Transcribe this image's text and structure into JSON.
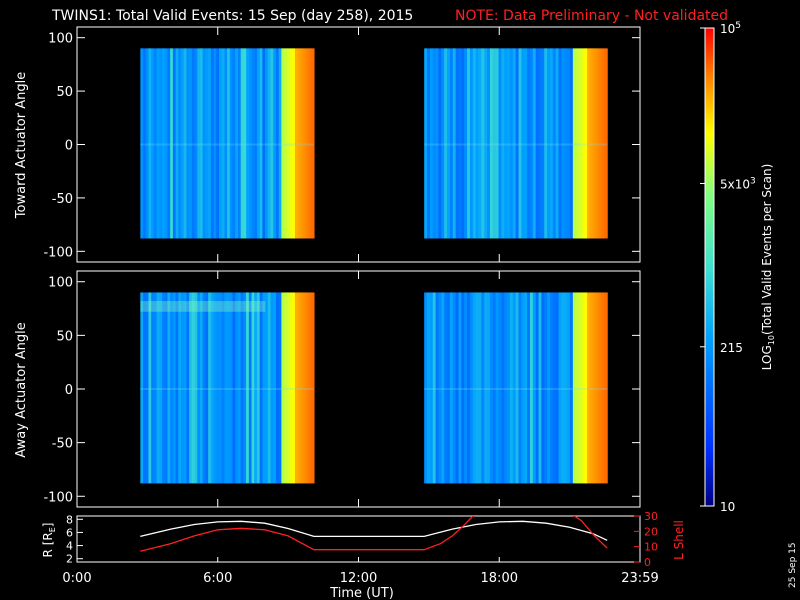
{
  "header": {
    "title": "TWINS1: Total Valid Events: 15 Sep (day 258), 2015",
    "note": "NOTE: Data Preliminary - Not validated"
  },
  "stamp": "25 Sep 15",
  "chart_data": [
    {
      "type": "heatmap",
      "panel": "toward",
      "ylabel": "Toward Actuator Angle",
      "ylim": [
        -110,
        110
      ],
      "yticks": [
        "100",
        "50",
        "0",
        "-50",
        "-100"
      ],
      "yticks_values": [
        100,
        50,
        0,
        -50,
        -100
      ],
      "xlim_hours": [
        0,
        24
      ],
      "segments": [
        {
          "start_h": 2.7,
          "end_h": 10.1,
          "angle_range": [
            -88,
            90
          ]
        },
        {
          "start_h": 14.8,
          "end_h": 22.6,
          "angle_range": [
            -88,
            90
          ]
        }
      ]
    },
    {
      "type": "heatmap",
      "panel": "away",
      "ylabel": "Away Actuator Angle",
      "ylim": [
        -110,
        110
      ],
      "yticks": [
        "100",
        "50",
        "0",
        "-50",
        "-100"
      ],
      "yticks_values": [
        100,
        50,
        0,
        -50,
        -100
      ],
      "xlim_hours": [
        0,
        24
      ],
      "segments": [
        {
          "start_h": 2.7,
          "end_h": 10.1,
          "angle_range": [
            -88,
            90
          ]
        },
        {
          "start_h": 14.8,
          "end_h": 22.6,
          "angle_range": [
            -88,
            90
          ]
        }
      ]
    },
    {
      "type": "line",
      "panel": "orbit",
      "ylabel_left": "R [RE]",
      "ylabel_left_sub": "E",
      "ylabel_right": "L Shell",
      "ylim_left": [
        1.5,
        8.5
      ],
      "ylim_right": [
        0,
        30
      ],
      "yticks_left": [
        "8",
        "6",
        "4",
        "2"
      ],
      "yticks_left_values": [
        8,
        6,
        4,
        2
      ],
      "yticks_right": [
        "30",
        "20",
        "10",
        "0"
      ],
      "yticks_right_values": [
        30,
        20,
        10,
        0
      ],
      "xlabel": "Time (UT)",
      "xticks": [
        "0:00",
        "6:00",
        "12:00",
        "18:00",
        "23:59"
      ],
      "xticks_values": [
        0,
        6,
        12,
        18,
        24
      ],
      "series": [
        {
          "name": "R",
          "color": "#ffffff",
          "axis": "left",
          "x": [
            2.7,
            4,
            5,
            6,
            7,
            8,
            9,
            10.1,
            14.8,
            16,
            17,
            18,
            19,
            20,
            21,
            22,
            22.6
          ],
          "y": [
            5.4,
            6.5,
            7.2,
            7.6,
            7.7,
            7.4,
            6.6,
            5.4,
            5.4,
            6.5,
            7.2,
            7.6,
            7.7,
            7.4,
            6.8,
            5.8,
            4.8
          ]
        },
        {
          "name": "L Shell",
          "color": "#ff2020",
          "axis": "right",
          "x": [
            2.7,
            4,
            5,
            6,
            7,
            8,
            9,
            10.1,
            14.8,
            15.5,
            16,
            16.5,
            17,
            21,
            21.5,
            22,
            22.6
          ],
          "y": [
            7,
            12,
            17,
            21,
            22,
            21,
            17,
            8,
            8,
            12,
            17,
            24,
            32,
            32,
            27,
            18,
            9
          ]
        }
      ]
    }
  ],
  "colorbar": {
    "label": "LOG10(Total Valid Events per Scan)",
    "label_main": "LOG",
    "label_sub": "10",
    "label_rest": "(Total Valid Events per Scan)",
    "ticks": [
      {
        "value": 100000,
        "base": "10",
        "exp": "5"
      },
      {
        "value": 5000,
        "base": "5x10",
        "exp": "3"
      },
      {
        "value": 215,
        "base": "215",
        "exp": ""
      },
      {
        "value": 10,
        "base": "10",
        "exp": ""
      }
    ],
    "vmin": 10,
    "vmax": 100000,
    "colors": [
      "#000080",
      "#0030ff",
      "#00a0ff",
      "#40e0d0",
      "#80ff80",
      "#ffff00",
      "#ff8000",
      "#ff0000"
    ]
  }
}
